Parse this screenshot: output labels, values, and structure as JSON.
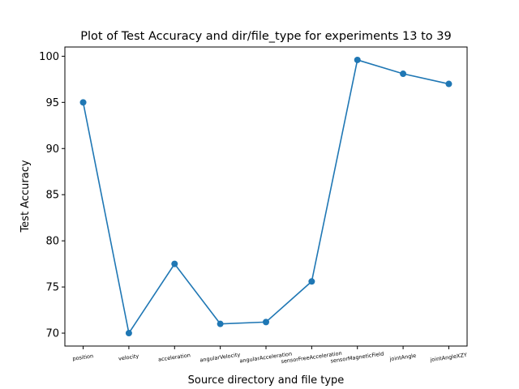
{
  "chart_data": {
    "type": "line",
    "title": "Plot of Test Accuracy and dir/file_type for experiments 13 to 39",
    "xlabel": "Source directory and file type",
    "ylabel": "Test Accuracy",
    "categories": [
      "position",
      "velocity",
      "acceleration",
      "angularVelocity",
      "angularAcceleration",
      "sensorFreeAcceleration",
      "sensorMagneticField",
      "jointAngle",
      "jointAngleXZY"
    ],
    "series": [
      {
        "values": [
          95.0,
          70.0,
          77.5,
          71.0,
          71.2,
          75.6,
          99.6,
          98.1,
          97.0
        ],
        "color": "#1f77b4",
        "marker": "circle"
      }
    ],
    "ylim": [
      68.6,
      101.0
    ],
    "yticks": [
      70,
      75,
      80,
      85,
      90,
      95,
      100
    ],
    "ytick_labels": [
      "70",
      "75",
      "80",
      "85",
      "90",
      "95",
      "100"
    ],
    "grid": false,
    "legend": "none"
  }
}
